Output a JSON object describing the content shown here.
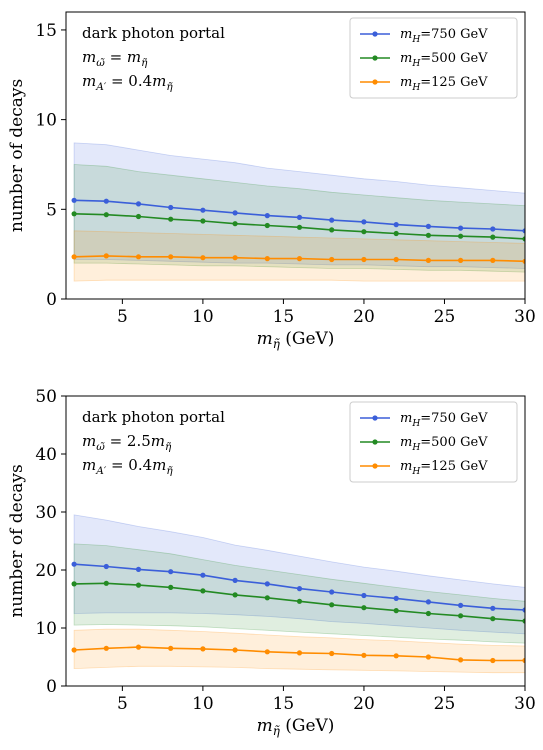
{
  "chart_data": [
    {
      "type": "line",
      "xlabel": "m_η̃ (GeV)",
      "ylabel": "number of decays",
      "xlim": [
        1.5,
        30
      ],
      "ylim": [
        0,
        16
      ],
      "xticks": [
        5,
        10,
        15,
        20,
        25,
        30
      ],
      "yticks": [
        0,
        5,
        10,
        15
      ],
      "grid": false,
      "legend_position": "top-right",
      "annotations": [
        "dark photon portal",
        "m_ω̃ = m_η̃",
        "m_A′ = 0.4m_η̃"
      ],
      "x": [
        2,
        4,
        6,
        8,
        10,
        12,
        14,
        16,
        18,
        20,
        22,
        24,
        26,
        28,
        30
      ],
      "series": [
        {
          "name": "m_H=750 GeV",
          "color": "#3b5fd9",
          "values": [
            5.5,
            5.45,
            5.3,
            5.1,
            4.95,
            4.8,
            4.65,
            4.55,
            4.4,
            4.3,
            4.15,
            4.05,
            3.95,
            3.9,
            3.8
          ],
          "upper": [
            8.7,
            8.6,
            8.3,
            8.0,
            7.8,
            7.6,
            7.3,
            7.1,
            6.9,
            6.7,
            6.55,
            6.35,
            6.2,
            6.05,
            5.9
          ],
          "lower": [
            2.2,
            2.2,
            2.15,
            2.1,
            2.05,
            2.0,
            2.0,
            1.95,
            1.9,
            1.9,
            1.85,
            1.8,
            1.8,
            1.75,
            1.7
          ]
        },
        {
          "name": "m_H=500 GeV",
          "color": "#238a23",
          "values": [
            4.75,
            4.7,
            4.6,
            4.45,
            4.35,
            4.2,
            4.1,
            4.0,
            3.85,
            3.75,
            3.65,
            3.55,
            3.5,
            3.45,
            3.35
          ],
          "upper": [
            7.5,
            7.4,
            7.1,
            6.9,
            6.7,
            6.5,
            6.3,
            6.15,
            5.95,
            5.8,
            5.65,
            5.5,
            5.4,
            5.3,
            5.2
          ],
          "lower": [
            2.0,
            2.0,
            1.95,
            1.9,
            1.85,
            1.85,
            1.8,
            1.75,
            1.7,
            1.7,
            1.65,
            1.6,
            1.6,
            1.55,
            1.5
          ]
        },
        {
          "name": "m_H=125 GeV",
          "color": "#ff8c00",
          "values": [
            2.35,
            2.4,
            2.35,
            2.35,
            2.3,
            2.3,
            2.25,
            2.25,
            2.2,
            2.2,
            2.2,
            2.15,
            2.15,
            2.15,
            2.1
          ],
          "upper": [
            3.8,
            3.75,
            3.7,
            3.65,
            3.6,
            3.55,
            3.5,
            3.45,
            3.4,
            3.35,
            3.3,
            3.25,
            3.2,
            3.15,
            3.1
          ],
          "lower": [
            1.0,
            1.05,
            1.05,
            1.05,
            1.05,
            1.05,
            1.05,
            1.05,
            1.05,
            1.0,
            1.0,
            1.0,
            1.0,
            1.0,
            1.0
          ]
        }
      ]
    },
    {
      "type": "line",
      "xlabel": "m_η̃ (GeV)",
      "ylabel": "number of decays",
      "xlim": [
        1.5,
        30
      ],
      "ylim": [
        0,
        50
      ],
      "xticks": [
        5,
        10,
        15,
        20,
        25,
        30
      ],
      "yticks": [
        0,
        10,
        20,
        30,
        40,
        50
      ],
      "grid": false,
      "legend_position": "top-right",
      "annotations": [
        "dark photon portal",
        "m_ω̃ = 2.5m_η̃",
        "m_A′ = 0.4m_η̃"
      ],
      "x": [
        2,
        4,
        6,
        8,
        10,
        12,
        14,
        16,
        18,
        20,
        22,
        24,
        26,
        28,
        30
      ],
      "series": [
        {
          "name": "m_H=750 GeV",
          "color": "#3b5fd9",
          "values": [
            21.0,
            20.6,
            20.1,
            19.7,
            19.1,
            18.2,
            17.6,
            16.8,
            16.2,
            15.6,
            15.1,
            14.5,
            13.9,
            13.4,
            13.1
          ],
          "upper": [
            29.5,
            28.6,
            27.5,
            26.6,
            25.6,
            24.3,
            23.4,
            22.4,
            21.4,
            20.5,
            19.8,
            19.0,
            18.3,
            17.6,
            17.0
          ],
          "lower": [
            12.5,
            12.6,
            12.6,
            12.6,
            12.5,
            12.3,
            12.0,
            11.6,
            11.1,
            10.8,
            10.4,
            10.0,
            9.6,
            9.3,
            9.0
          ]
        },
        {
          "name": "m_H=500 GeV",
          "color": "#238a23",
          "values": [
            17.6,
            17.7,
            17.4,
            17.0,
            16.4,
            15.7,
            15.2,
            14.6,
            14.0,
            13.5,
            13.0,
            12.5,
            12.1,
            11.6,
            11.2
          ],
          "upper": [
            24.5,
            24.2,
            23.5,
            22.8,
            21.8,
            20.8,
            20.0,
            19.2,
            18.4,
            17.7,
            17.0,
            16.3,
            15.7,
            15.1,
            14.6
          ],
          "lower": [
            10.5,
            10.6,
            10.5,
            10.4,
            10.2,
            9.9,
            9.6,
            9.3,
            9.0,
            8.7,
            8.4,
            8.1,
            7.9,
            7.6,
            7.4
          ]
        },
        {
          "name": "m_H=125 GeV",
          "color": "#ff8c00",
          "values": [
            6.2,
            6.5,
            6.7,
            6.5,
            6.4,
            6.2,
            5.9,
            5.7,
            5.6,
            5.3,
            5.2,
            5.0,
            4.5,
            4.4,
            4.4
          ],
          "upper": [
            9.6,
            9.8,
            9.8,
            9.6,
            9.4,
            9.1,
            8.8,
            8.5,
            8.3,
            8.0,
            7.8,
            7.5,
            7.2,
            7.0,
            6.9
          ],
          "lower": [
            3.0,
            3.2,
            3.4,
            3.4,
            3.3,
            3.2,
            3.0,
            2.9,
            2.8,
            2.7,
            2.6,
            2.5,
            2.4,
            2.3,
            2.3
          ]
        }
      ]
    }
  ]
}
